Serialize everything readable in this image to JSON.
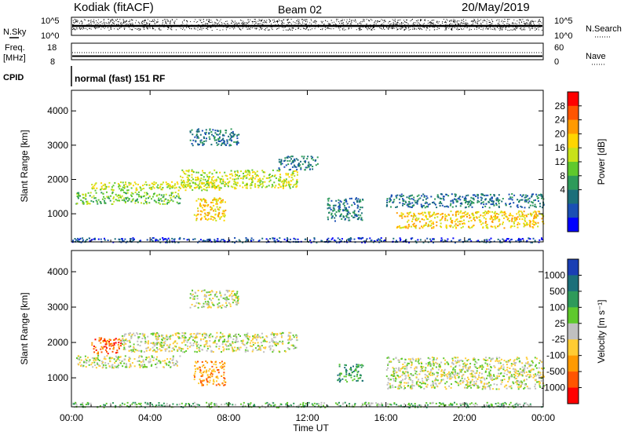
{
  "header": {
    "station": "Kodiak (fitACF)",
    "beam": "Beam 02",
    "date": "20/May/2019"
  },
  "left_labels": {
    "nsky": "N.Sky",
    "nsky_ticks": [
      "10^5",
      "10^0"
    ],
    "freq_l1": "Freq.",
    "freq_l2": "[MHz]",
    "freq_ticks": [
      "18",
      "8"
    ],
    "cpid": "CPID",
    "cpid_text": "normal (fast) 151 RF"
  },
  "right_labels": {
    "nsearch": "N.Search",
    "nsearch_ticks": [
      "10^5",
      "10^0"
    ],
    "nave": "Nave",
    "nave_ticks": [
      "60",
      "0"
    ]
  },
  "chart_data": [
    {
      "type": "heatmap",
      "panel": "power",
      "ylabel": "Slant Range [km]",
      "xlabel": "Time UT",
      "x_ticks": [
        "00:00",
        "04:00",
        "08:00",
        "12:00",
        "16:00",
        "20:00",
        "00:00"
      ],
      "xlim_hours": [
        0,
        24
      ],
      "ylim_km": [
        180,
        4600
      ],
      "y_ticks": [
        1000,
        2000,
        3000,
        4000
      ],
      "colorbar": {
        "label": "Power [dB]",
        "ticks": [
          "28",
          "24",
          "20",
          "16",
          "12",
          "8",
          "4"
        ],
        "colors": [
          "#ff0000",
          "#ff5500",
          "#ff9a00",
          "#ffd500",
          "#c8e21a",
          "#5fc92d",
          "#2e9a5a",
          "#1c6f7a",
          "#1a4fb4",
          "#0000ff"
        ]
      },
      "echo_regions": [
        {
          "t": [
            0.2,
            5.5
          ],
          "r": [
            1300,
            1650
          ],
          "level": 14
        },
        {
          "t": [
            1.0,
            7.5
          ],
          "r": [
            1700,
            1950
          ],
          "level": 18
        },
        {
          "t": [
            5.5,
            11.5
          ],
          "r": [
            1750,
            2300
          ],
          "level": 18
        },
        {
          "t": [
            6.0,
            8.5
          ],
          "r": [
            3000,
            3500
          ],
          "level": 10
        },
        {
          "t": [
            6.2,
            7.8
          ],
          "r": [
            800,
            1500
          ],
          "level": 22
        },
        {
          "t": [
            10.5,
            12.5
          ],
          "r": [
            2300,
            2700
          ],
          "level": 8
        },
        {
          "t": [
            13.0,
            14.8
          ],
          "r": [
            800,
            1500
          ],
          "level": 10
        },
        {
          "t": [
            16.0,
            24.0
          ],
          "r": [
            1200,
            1600
          ],
          "level": 10
        },
        {
          "t": [
            16.5,
            24.0
          ],
          "r": [
            600,
            1100
          ],
          "level": 20
        },
        {
          "t": [
            0.0,
            24.0
          ],
          "r": [
            180,
            320
          ],
          "level": 6
        }
      ]
    },
    {
      "type": "heatmap",
      "panel": "velocity",
      "ylabel": "Slant Range [km]",
      "xlabel": "Time UT",
      "x_ticks": [
        "00:00",
        "04:00",
        "08:00",
        "12:00",
        "16:00",
        "20:00",
        "00:00"
      ],
      "xlim_hours": [
        0,
        24
      ],
      "ylim_km": [
        180,
        4600
      ],
      "y_ticks": [
        1000,
        2000,
        3000,
        4000
      ],
      "colorbar": {
        "label": "Velocity [m s⁻¹]",
        "ticks": [
          "1000",
          "500",
          "100",
          "25",
          "-25",
          "-100",
          "-500",
          "-1000"
        ],
        "colors": [
          "#1a3fb4",
          "#1c6f7a",
          "#2e9a5a",
          "#5fc92d",
          "#c0c0c0",
          "#ffcc33",
          "#ff9a00",
          "#ff5500",
          "#ff0000"
        ]
      },
      "echo_regions": [
        {
          "t": [
            0.2,
            5.5
          ],
          "r": [
            1300,
            1650
          ],
          "level": 0
        },
        {
          "t": [
            1.0,
            2.5
          ],
          "r": [
            1700,
            2150
          ],
          "level": -700
        },
        {
          "t": [
            2.5,
            11.5
          ],
          "r": [
            1750,
            2300
          ],
          "level": 0
        },
        {
          "t": [
            6.0,
            8.5
          ],
          "r": [
            3000,
            3500
          ],
          "level": 0
        },
        {
          "t": [
            6.2,
            7.8
          ],
          "r": [
            800,
            1500
          ],
          "level": -300
        },
        {
          "t": [
            13.5,
            14.8
          ],
          "r": [
            900,
            1400
          ],
          "level": 150
        },
        {
          "t": [
            16.0,
            24.0
          ],
          "r": [
            700,
            1600
          ],
          "level": 0
        },
        {
          "t": [
            0.0,
            24.0
          ],
          "r": [
            180,
            320
          ],
          "level": 50
        }
      ]
    }
  ]
}
